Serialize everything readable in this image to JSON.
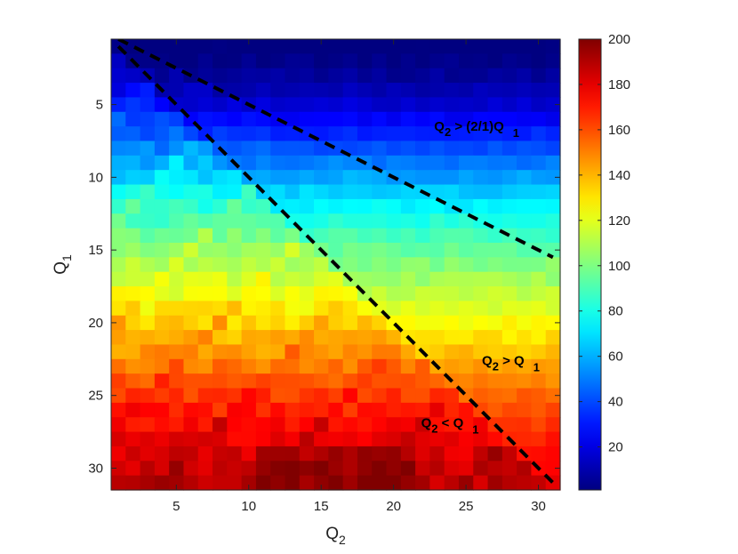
{
  "chart_data": {
    "type": "heatmap",
    "title": "",
    "xlabel": {
      "main": "Q",
      "sub": "2"
    },
    "ylabel": {
      "main": "Q",
      "sub": "1"
    },
    "x_range": [
      1,
      31
    ],
    "y_range": [
      1,
      31
    ],
    "y_direction": "top-to-bottom",
    "xticks": [
      5,
      10,
      15,
      20,
      25,
      30
    ],
    "yticks": [
      5,
      10,
      15,
      20,
      25,
      30
    ],
    "colorbar": {
      "colormap": "jet",
      "range": [
        1,
        200
      ],
      "ticks": [
        20,
        40,
        60,
        80,
        100,
        120,
        140,
        160,
        180,
        200
      ],
      "placement": "right"
    },
    "value_model": {
      "description_note": "",
      "base_by_row": [
        4,
        7,
        11,
        16,
        22,
        30,
        38,
        46,
        54,
        62,
        70,
        78,
        85,
        92,
        98,
        104,
        110,
        116,
        122,
        128,
        134,
        140,
        146,
        152,
        158,
        163,
        168,
        172,
        176,
        180,
        182
      ],
      "lower_region_min": 110
    },
    "lines": [
      {
        "name": "Q2 = Q1",
        "style": "dashed",
        "color": "#000000",
        "points": [
          [
            1,
            1
          ],
          [
            31,
            31
          ]
        ]
      },
      {
        "name": "Q2 = 2Q1",
        "style": "dashed",
        "color": "#000000",
        "points": [
          [
            1,
            0.5
          ],
          [
            31,
            15.5
          ]
        ]
      }
    ],
    "annotations": [
      {
        "label": {
          "main": "Q",
          "sub": "2",
          "mid": " > (2/1)Q",
          "sub2": "1"
        },
        "x": 22.8,
        "y": 6.8
      },
      {
        "label": {
          "main": "Q",
          "sub": "2",
          "mid": " > Q",
          "sub2": "1"
        },
        "x": 26.1,
        "y": 22.9
      },
      {
        "label": {
          "main": "Q",
          "sub": "2",
          "mid": " < Q",
          "sub2": "1"
        },
        "x": 21.9,
        "y": 27.2
      }
    ]
  }
}
